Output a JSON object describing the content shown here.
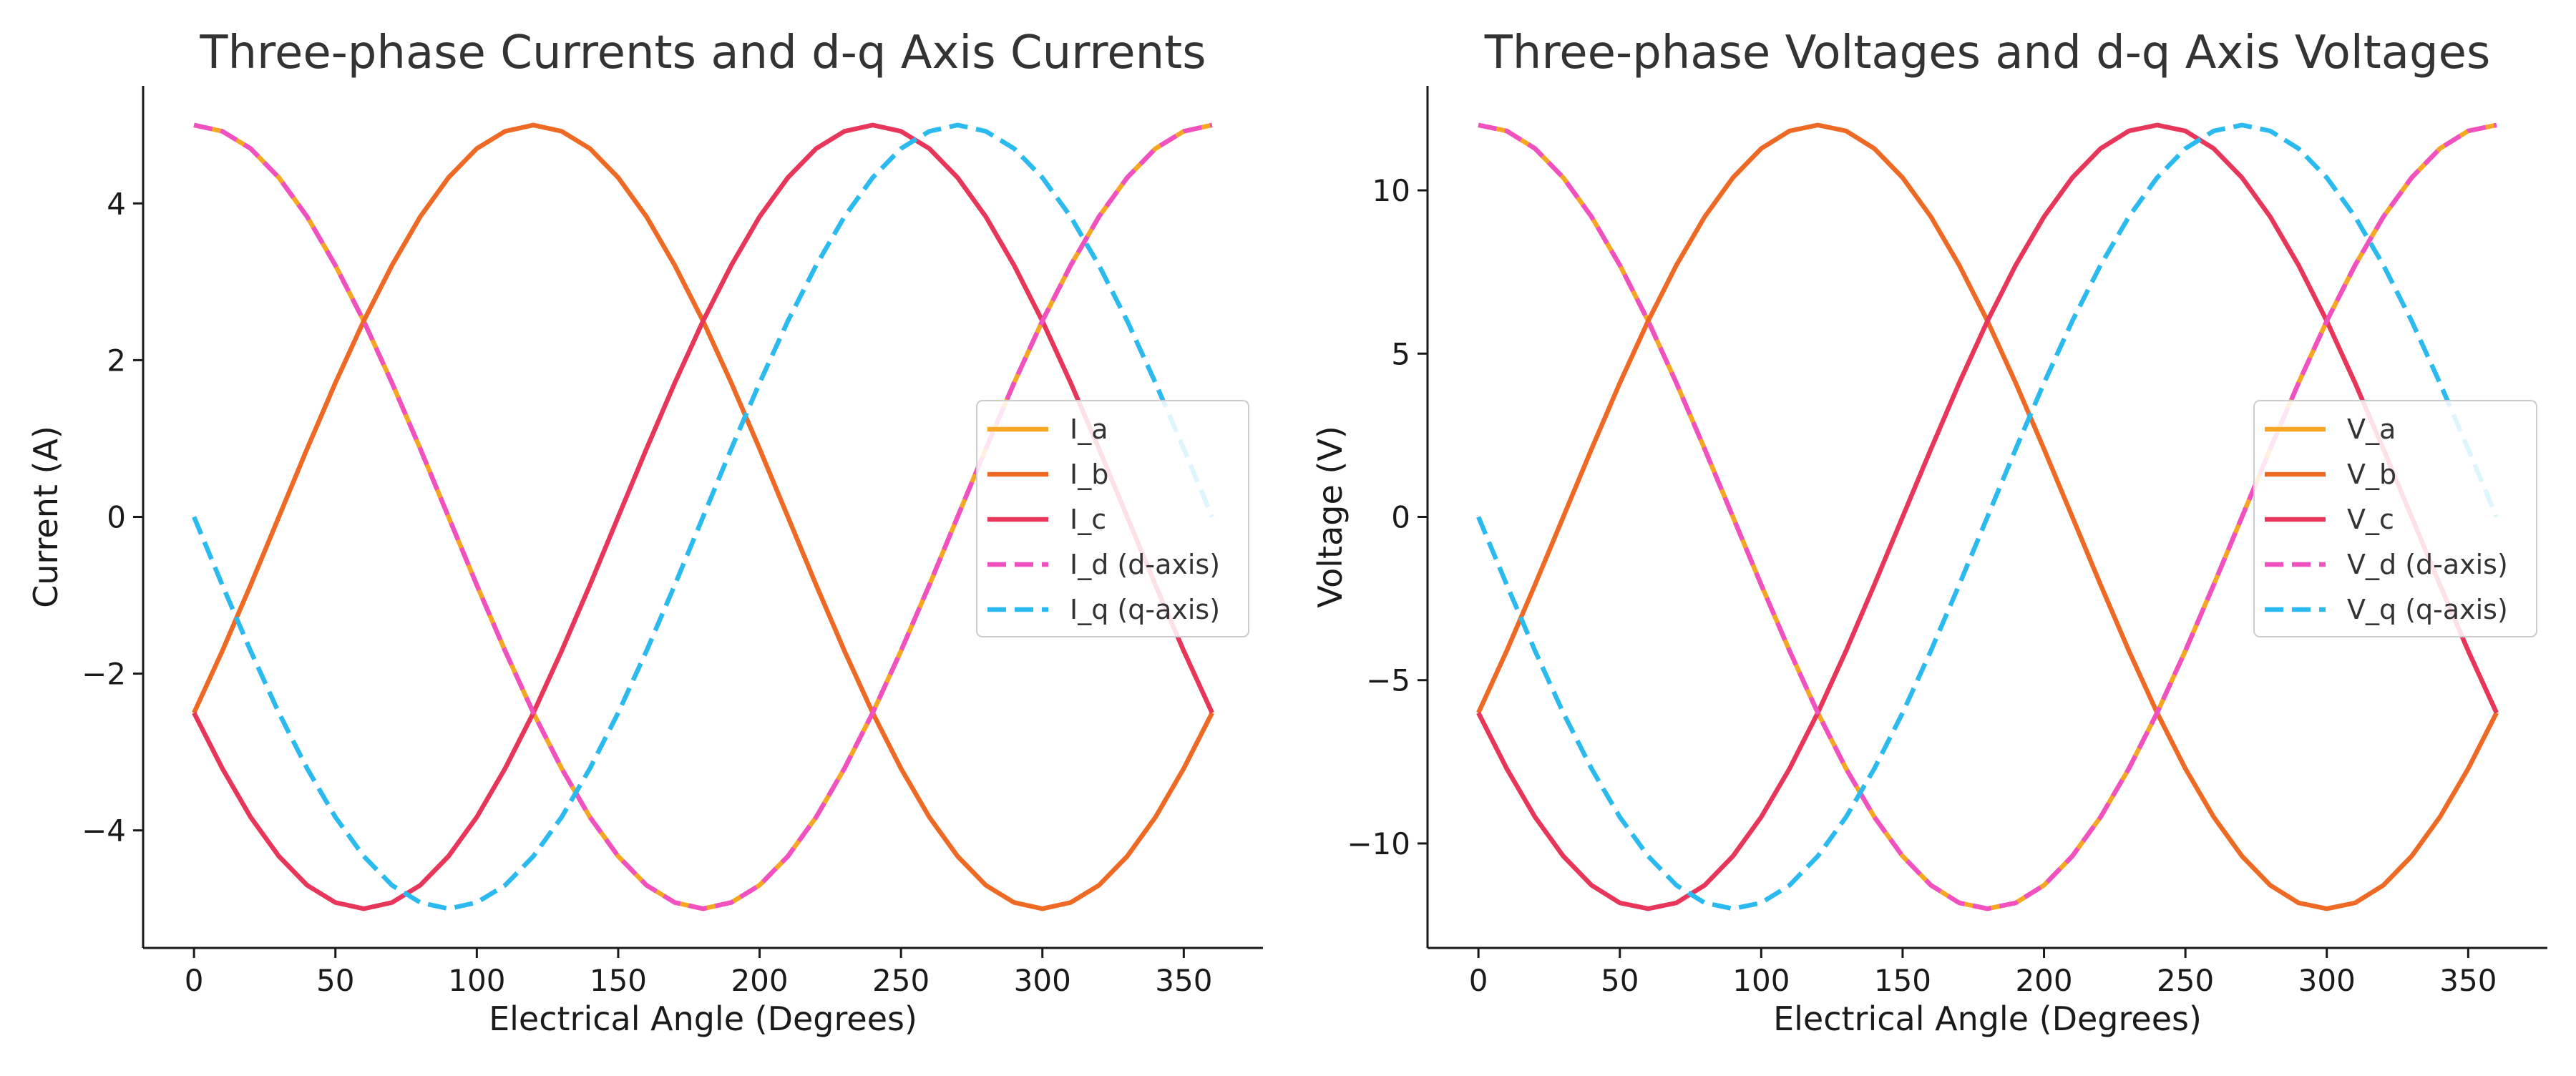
{
  "chart_data": [
    {
      "type": "line",
      "title": "Three-phase Currents and d-q Axis Currents",
      "xlabel": "Electrical Angle (Degrees)",
      "ylabel": "Current (A)",
      "xlim": [
        -18,
        378
      ],
      "ylim": [
        -5.5,
        5.5
      ],
      "xticks": [
        0,
        50,
        100,
        150,
        200,
        250,
        300,
        350
      ],
      "yticks": [
        -4,
        -2,
        0,
        2,
        4
      ],
      "grid": false,
      "legend_position": "center-right",
      "x": [
        0,
        10,
        20,
        30,
        40,
        50,
        60,
        70,
        80,
        90,
        100,
        110,
        120,
        130,
        140,
        150,
        160,
        170,
        180,
        190,
        200,
        210,
        220,
        230,
        240,
        250,
        260,
        270,
        280,
        290,
        300,
        310,
        320,
        330,
        340,
        350,
        360
      ],
      "series": [
        {
          "name": "I_a",
          "color": "#f5a623",
          "dash": "solid",
          "values": [
            5.0,
            4.92,
            4.7,
            4.33,
            3.83,
            3.21,
            2.5,
            1.71,
            0.87,
            0.0,
            -0.87,
            -1.71,
            -2.5,
            -3.21,
            -3.83,
            -4.33,
            -4.7,
            -4.92,
            -5.0,
            -4.92,
            -4.7,
            -4.33,
            -3.83,
            -3.21,
            -2.5,
            -1.71,
            -0.87,
            0.0,
            0.87,
            1.71,
            2.5,
            3.21,
            3.83,
            4.33,
            4.7,
            4.92,
            5.0
          ]
        },
        {
          "name": "I_b",
          "color": "#ee6a24",
          "dash": "solid",
          "values": [
            -2.5,
            -1.71,
            -0.87,
            0.0,
            0.87,
            1.71,
            2.5,
            3.21,
            3.83,
            4.33,
            4.7,
            4.92,
            5.0,
            4.92,
            4.7,
            4.33,
            3.83,
            3.21,
            2.5,
            1.71,
            0.87,
            0.0,
            -0.87,
            -1.71,
            -2.5,
            -3.21,
            -3.83,
            -4.33,
            -4.7,
            -4.92,
            -5.0,
            -4.92,
            -4.7,
            -4.33,
            -3.83,
            -3.21,
            -2.5
          ]
        },
        {
          "name": "I_c",
          "color": "#e8365a",
          "dash": "solid",
          "values": [
            -2.5,
            -3.21,
            -3.83,
            -4.33,
            -4.7,
            -4.92,
            -5.0,
            -4.92,
            -4.7,
            -4.33,
            -3.83,
            -3.21,
            -2.5,
            -1.71,
            -0.87,
            0.0,
            0.87,
            1.71,
            2.5,
            3.21,
            3.83,
            4.33,
            4.7,
            4.92,
            5.0,
            4.92,
            4.7,
            4.33,
            3.83,
            3.21,
            2.5,
            1.71,
            0.87,
            0.0,
            -0.87,
            -1.71,
            -2.5
          ]
        },
        {
          "name": "I_d (d-axis)",
          "color": "#f050c0",
          "dash": "dashed",
          "values": [
            5.0,
            4.92,
            4.7,
            4.33,
            3.83,
            3.21,
            2.5,
            1.71,
            0.87,
            0.0,
            -0.87,
            -1.71,
            -2.5,
            -3.21,
            -3.83,
            -4.33,
            -4.7,
            -4.92,
            -5.0,
            -4.92,
            -4.7,
            -4.33,
            -3.83,
            -3.21,
            -2.5,
            -1.71,
            -0.87,
            0.0,
            0.87,
            1.71,
            2.5,
            3.21,
            3.83,
            4.33,
            4.7,
            4.92,
            5.0
          ]
        },
        {
          "name": "I_q (q-axis)",
          "color": "#2bbaf0",
          "dash": "dashed",
          "values": [
            0.0,
            -0.87,
            -1.71,
            -2.5,
            -3.21,
            -3.83,
            -4.33,
            -4.7,
            -4.92,
            -5.0,
            -4.92,
            -4.7,
            -4.33,
            -3.83,
            -3.21,
            -2.5,
            -1.71,
            -0.87,
            0.0,
            0.87,
            1.71,
            2.5,
            3.21,
            3.83,
            4.33,
            4.7,
            4.92,
            5.0,
            4.92,
            4.7,
            4.33,
            3.83,
            3.21,
            2.5,
            1.71,
            0.87,
            0.0
          ]
        }
      ]
    },
    {
      "type": "line",
      "title": "Three-phase Voltages and d-q Axis Voltages",
      "xlabel": "Electrical Angle (Degrees)",
      "ylabel": "Voltage (V)",
      "xlim": [
        -18,
        378
      ],
      "ylim": [
        -13.2,
        13.2
      ],
      "xticks": [
        0,
        50,
        100,
        150,
        200,
        250,
        300,
        350
      ],
      "yticks": [
        -10,
        -5,
        0,
        5,
        10
      ],
      "grid": false,
      "legend_position": "center-right",
      "x": [
        0,
        10,
        20,
        30,
        40,
        50,
        60,
        70,
        80,
        90,
        100,
        110,
        120,
        130,
        140,
        150,
        160,
        170,
        180,
        190,
        200,
        210,
        220,
        230,
        240,
        250,
        260,
        270,
        280,
        290,
        300,
        310,
        320,
        330,
        340,
        350,
        360
      ],
      "series": [
        {
          "name": "V_a",
          "color": "#f5a623",
          "dash": "solid",
          "values": [
            12.0,
            11.82,
            11.28,
            10.39,
            9.19,
            7.71,
            6.0,
            4.1,
            2.08,
            0.0,
            -2.08,
            -4.1,
            -6.0,
            -7.71,
            -9.19,
            -10.39,
            -11.28,
            -11.82,
            -12.0,
            -11.82,
            -11.28,
            -10.39,
            -9.19,
            -7.71,
            -6.0,
            -4.1,
            -2.08,
            0.0,
            2.08,
            4.1,
            6.0,
            7.71,
            9.19,
            10.39,
            11.28,
            11.82,
            12.0
          ]
        },
        {
          "name": "V_b",
          "color": "#ee6a24",
          "dash": "solid",
          "values": [
            -6.0,
            -4.1,
            -2.08,
            0.0,
            2.08,
            4.1,
            6.0,
            7.71,
            9.19,
            10.39,
            11.28,
            11.82,
            12.0,
            11.82,
            11.28,
            10.39,
            9.19,
            7.71,
            6.0,
            4.1,
            2.08,
            0.0,
            -2.08,
            -4.1,
            -6.0,
            -7.71,
            -9.19,
            -10.39,
            -11.28,
            -11.82,
            -12.0,
            -11.82,
            -11.28,
            -10.39,
            -9.19,
            -7.71,
            -6.0
          ]
        },
        {
          "name": "V_c",
          "color": "#e8365a",
          "dash": "solid",
          "values": [
            -6.0,
            -7.71,
            -9.19,
            -10.39,
            -11.28,
            -11.82,
            -12.0,
            -11.82,
            -11.28,
            -10.39,
            -9.19,
            -7.71,
            -6.0,
            -4.1,
            -2.08,
            0.0,
            2.08,
            4.1,
            6.0,
            7.71,
            9.19,
            10.39,
            11.28,
            11.82,
            12.0,
            11.82,
            11.28,
            10.39,
            9.19,
            7.71,
            6.0,
            4.1,
            2.08,
            0.0,
            -2.08,
            -4.1,
            -6.0
          ]
        },
        {
          "name": "V_d (d-axis)",
          "color": "#f050c0",
          "dash": "dashed",
          "values": [
            12.0,
            11.82,
            11.28,
            10.39,
            9.19,
            7.71,
            6.0,
            4.1,
            2.08,
            0.0,
            -2.08,
            -4.1,
            -6.0,
            -7.71,
            -9.19,
            -10.39,
            -11.28,
            -11.82,
            -12.0,
            -11.82,
            -11.28,
            -10.39,
            -9.19,
            -7.71,
            -6.0,
            -4.1,
            -2.08,
            0.0,
            2.08,
            4.1,
            6.0,
            7.71,
            9.19,
            10.39,
            11.28,
            11.82,
            12.0
          ]
        },
        {
          "name": "V_q (q-axis)",
          "color": "#2bbaf0",
          "dash": "dashed",
          "values": [
            0.0,
            -2.08,
            -4.1,
            -6.0,
            -7.71,
            -9.19,
            -10.39,
            -11.28,
            -11.82,
            -12.0,
            -11.82,
            -11.28,
            -10.39,
            -9.19,
            -7.71,
            -6.0,
            -4.1,
            -2.08,
            0.0,
            2.08,
            4.1,
            6.0,
            7.71,
            9.19,
            10.39,
            11.28,
            11.82,
            12.0,
            11.82,
            11.28,
            10.39,
            9.19,
            7.71,
            6.0,
            4.1,
            2.08,
            0.0
          ]
        }
      ]
    }
  ]
}
